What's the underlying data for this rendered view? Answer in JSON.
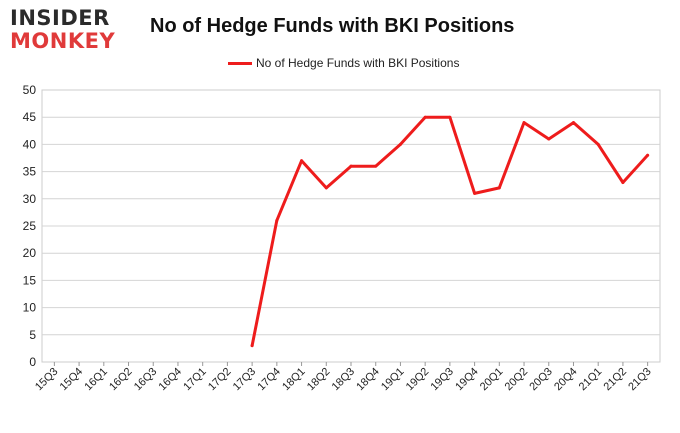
{
  "logo": {
    "line1": "INSIDER",
    "line2": "MONKEY"
  },
  "chart_data": {
    "type": "line",
    "title": "No of Hedge Funds with BKI Positions",
    "xlabel": "",
    "ylabel": "",
    "ylim": [
      0,
      50
    ],
    "yticks": [
      0,
      5,
      10,
      15,
      20,
      25,
      30,
      35,
      40,
      45,
      50
    ],
    "grid": true,
    "legend_position": "top-center",
    "categories": [
      "15Q3",
      "15Q4",
      "16Q1",
      "16Q2",
      "16Q3",
      "16Q4",
      "17Q1",
      "17Q2",
      "17Q3",
      "17Q4",
      "18Q1",
      "18Q2",
      "18Q3",
      "18Q4",
      "19Q1",
      "19Q2",
      "19Q3",
      "19Q4",
      "20Q1",
      "20Q2",
      "20Q3",
      "20Q4",
      "21Q1",
      "21Q2",
      "21Q3"
    ],
    "series": [
      {
        "name": "No of Hedge Funds with BKI Positions",
        "color": "#ee1c1c",
        "values": [
          null,
          null,
          null,
          null,
          null,
          null,
          null,
          null,
          3,
          26,
          37,
          32,
          36,
          36,
          40,
          45,
          45,
          31,
          32,
          44,
          41,
          44,
          40,
          33,
          38
        ]
      }
    ]
  }
}
